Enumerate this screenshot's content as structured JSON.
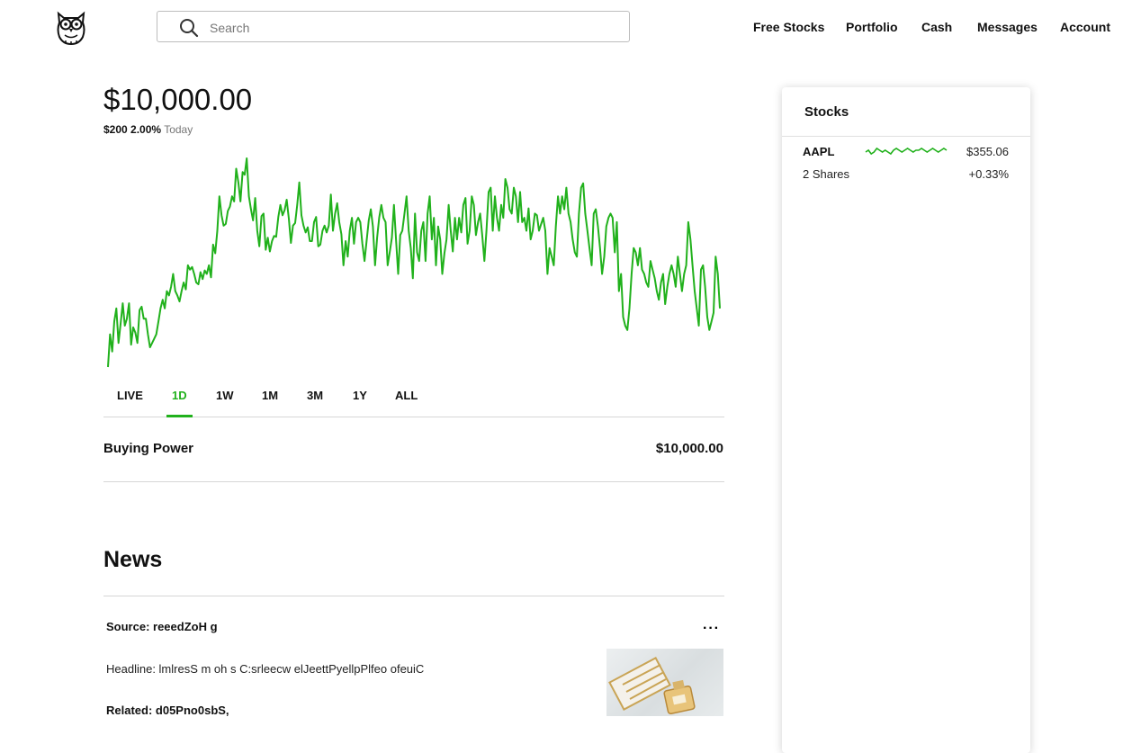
{
  "header": {
    "search_placeholder": "Search",
    "nav": [
      "Free Stocks",
      "Portfolio",
      "Cash",
      "Messages",
      "Account"
    ]
  },
  "portfolio": {
    "balance": "$10,000.00",
    "change_amount": "$200",
    "change_percent": "2.00%",
    "change_period": "Today",
    "ranges": [
      "LIVE",
      "1D",
      "1W",
      "1M",
      "3M",
      "1Y",
      "ALL"
    ],
    "active_range": "1D",
    "buying_power_label": "Buying Power",
    "buying_power_value": "$10,000.00"
  },
  "chart_data": {
    "type": "line",
    "color": "#21b11c",
    "values": [
      2,
      40,
      20,
      55,
      70,
      30,
      52,
      76,
      50,
      58,
      76,
      28,
      48,
      42,
      30,
      68,
      72,
      58,
      58,
      40,
      25,
      30,
      35,
      40,
      55,
      70,
      80,
      70,
      90,
      85,
      95,
      110,
      90,
      85,
      78,
      90,
      100,
      92,
      120,
      115,
      118,
      110,
      100,
      98,
      112,
      104,
      114,
      110,
      120,
      106,
      144,
      134,
      160,
      200,
      178,
      166,
      168,
      183,
      188,
      200,
      194,
      232,
      216,
      194,
      228,
      225,
      244,
      200,
      185,
      172,
      198,
      160,
      142,
      177,
      180,
      138,
      152,
      136,
      148,
      154,
      153,
      176,
      190,
      178,
      184,
      196,
      174,
      146,
      166,
      169,
      190,
      216,
      178,
      166,
      158,
      164,
      148,
      148,
      170,
      176,
      142,
      144,
      160,
      166,
      158,
      166,
      202,
      160,
      180,
      192,
      170,
      156,
      120,
      148,
      130,
      160,
      175,
      145,
      170,
      175,
      170,
      145,
      125,
      148,
      172,
      185,
      165,
      120,
      152,
      175,
      190,
      175,
      170,
      120,
      135,
      152,
      190,
      150,
      110,
      155,
      160,
      180,
      200,
      160,
      140,
      105,
      180,
      135,
      125,
      160,
      170,
      125,
      180,
      200,
      150,
      175,
      120,
      165,
      150,
      110,
      134,
      150,
      190,
      160,
      136,
      175,
      150,
      175,
      158,
      190,
      198,
      145,
      160,
      200,
      190,
      155,
      170,
      180,
      155,
      125,
      160,
      205,
      210,
      160,
      200,
      175,
      160,
      190,
      175,
      220,
      210,
      185,
      180,
      210,
      200,
      170,
      205,
      170,
      175,
      160,
      186,
      150,
      160,
      180,
      178,
      160,
      168,
      175,
      160,
      110,
      140,
      130,
      120,
      165,
      200,
      180,
      200,
      185,
      210,
      180,
      170,
      150,
      135,
      130,
      180,
      210,
      215,
      180,
      160,
      140,
      120,
      180,
      185,
      165,
      140,
      110,
      130,
      165,
      175,
      180,
      175,
      135,
      170,
      90,
      110,
      60,
      50,
      45,
      70,
      110,
      140,
      135,
      120,
      140,
      115,
      110,
      100,
      95,
      125,
      115,
      105,
      90,
      80,
      100,
      110,
      75,
      95,
      110,
      120,
      110,
      95,
      130,
      110,
      90,
      110,
      120,
      170,
      150,
      120,
      90,
      70,
      50,
      115,
      120,
      95,
      60,
      45,
      55,
      65,
      130,
      110,
      70
    ]
  },
  "stocks_panel": {
    "title": "Stocks",
    "holdings": [
      {
        "ticker": "AAPL",
        "shares": "2 Shares",
        "price": "$355.06",
        "change": "+0.33%",
        "sparkline": [
          5,
          6,
          4,
          5,
          7,
          6,
          5,
          6,
          5,
          4,
          6,
          7,
          6,
          5,
          6,
          7,
          6,
          5,
          6,
          6,
          7,
          6,
          5,
          6,
          7,
          6,
          5,
          6,
          7,
          6
        ]
      }
    ]
  },
  "news": {
    "title": "News",
    "more_label": "···",
    "items": [
      {
        "source": "Source: reeedZoH g",
        "headline": "Headline: lmlresS m oh s C:srleecw elJeettPyellpPlfeo ofeuiC",
        "related": "Related: d05Pno0sbS,"
      }
    ]
  }
}
